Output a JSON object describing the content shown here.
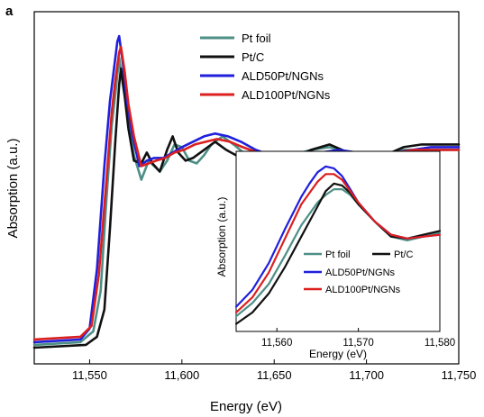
{
  "figure": {
    "panel_label": "a"
  },
  "chart_data": [
    {
      "type": "line",
      "xlabel": "Energy (eV)",
      "ylabel": "Absorption (a.u.)",
      "xlim": [
        11520,
        11750
      ],
      "ylim": [
        -0.05,
        1.25
      ],
      "xticks": [
        11550,
        11600,
        11650,
        11700,
        11750
      ],
      "xtick_labels": [
        "11,550",
        "11,600",
        "11,650",
        "11,700",
        "11,750"
      ],
      "yticks_shown": false,
      "legend_position": "top-center",
      "series": [
        {
          "name": "Pt foil",
          "color": "#4e8f86",
          "x": [
            11520,
            11545,
            11552,
            11556,
            11559,
            11562,
            11564,
            11566,
            11568,
            11571,
            11574,
            11578,
            11582,
            11585,
            11588,
            11592,
            11596,
            11600,
            11604,
            11608,
            11612,
            11616,
            11622,
            11628,
            11635,
            11642,
            11650,
            11660,
            11670,
            11680,
            11690,
            11700,
            11710,
            11720,
            11730,
            11740,
            11750
          ],
          "y": [
            0.02,
            0.03,
            0.07,
            0.22,
            0.55,
            0.83,
            0.95,
            1.08,
            0.98,
            0.86,
            0.72,
            0.63,
            0.7,
            0.68,
            0.66,
            0.7,
            0.76,
            0.75,
            0.7,
            0.69,
            0.72,
            0.76,
            0.79,
            0.76,
            0.72,
            0.7,
            0.69,
            0.72,
            0.74,
            0.75,
            0.73,
            0.71,
            0.72,
            0.74,
            0.74,
            0.74,
            0.74
          ]
        },
        {
          "name": "Pt/C",
          "color": "#111111",
          "x": [
            11520,
            11548,
            11554,
            11558,
            11561,
            11564,
            11566,
            11567,
            11569,
            11571,
            11574,
            11578,
            11581,
            11584,
            11588,
            11592,
            11595,
            11598,
            11602,
            11606,
            11612,
            11618,
            11624,
            11632,
            11640,
            11650,
            11660,
            11670,
            11680,
            11690,
            11700,
            11710,
            11720,
            11730,
            11740,
            11750
          ],
          "y": [
            0.01,
            0.02,
            0.05,
            0.15,
            0.45,
            0.78,
            0.98,
            1.04,
            0.94,
            0.82,
            0.7,
            0.69,
            0.73,
            0.69,
            0.66,
            0.74,
            0.79,
            0.73,
            0.7,
            0.71,
            0.74,
            0.77,
            0.74,
            0.71,
            0.69,
            0.68,
            0.71,
            0.74,
            0.76,
            0.73,
            0.7,
            0.72,
            0.75,
            0.76,
            0.76,
            0.76
          ]
        },
        {
          "name": "ALD50Pt/NGNs",
          "color": "#1f1fdc",
          "x": [
            11520,
            11545,
            11550,
            11554,
            11558,
            11561,
            11563,
            11565,
            11566,
            11568,
            11570,
            11573,
            11577,
            11581,
            11585,
            11590,
            11595,
            11600,
            11606,
            11612,
            11618,
            11625,
            11632,
            11640,
            11648,
            11656,
            11665,
            11675,
            11685,
            11695,
            11705,
            11715,
            11725,
            11735,
            11745,
            11750
          ],
          "y": [
            0.03,
            0.04,
            0.08,
            0.3,
            0.68,
            0.92,
            1.03,
            1.14,
            1.16,
            1.06,
            0.93,
            0.8,
            0.68,
            0.7,
            0.71,
            0.71,
            0.73,
            0.75,
            0.77,
            0.79,
            0.8,
            0.79,
            0.77,
            0.74,
            0.72,
            0.71,
            0.72,
            0.73,
            0.74,
            0.73,
            0.72,
            0.73,
            0.74,
            0.75,
            0.75,
            0.75
          ]
        },
        {
          "name": "ALD100Pt/NGNs",
          "color": "#dc1f1f",
          "x": [
            11520,
            11545,
            11551,
            11555,
            11559,
            11562,
            11564,
            11566,
            11567,
            11569,
            11571,
            11574,
            11578,
            11582,
            11586,
            11591,
            11596,
            11601,
            11607,
            11613,
            11619,
            11626,
            11633,
            11641,
            11649,
            11657,
            11666,
            11676,
            11686,
            11696,
            11706,
            11716,
            11726,
            11736,
            11746,
            11750
          ],
          "y": [
            0.04,
            0.05,
            0.09,
            0.28,
            0.62,
            0.88,
            1.0,
            1.1,
            1.12,
            1.03,
            0.91,
            0.79,
            0.68,
            0.69,
            0.7,
            0.71,
            0.73,
            0.74,
            0.76,
            0.77,
            0.78,
            0.77,
            0.75,
            0.73,
            0.71,
            0.71,
            0.72,
            0.73,
            0.73,
            0.73,
            0.72,
            0.73,
            0.74,
            0.74,
            0.74,
            0.74
          ]
        }
      ]
    },
    {
      "type": "line",
      "role": "inset",
      "xlabel": "Energy (eV)",
      "ylabel": "Absorption (a.u.)",
      "xlim": [
        11555,
        11580
      ],
      "ylim": [
        0.3,
        1.25
      ],
      "xticks": [
        11560,
        11570,
        11580
      ],
      "xtick_labels": [
        "11,560",
        "11,570",
        "11,580"
      ],
      "yticks_shown": false,
      "legend_position": "bottom-center",
      "series": [
        {
          "name": "Pt foil",
          "color": "#4e8f86",
          "x": [
            11555,
            11557,
            11559,
            11561,
            11563,
            11565,
            11566,
            11567,
            11568,
            11569,
            11570,
            11572,
            11574,
            11576,
            11578,
            11580
          ],
          "y": [
            0.38,
            0.45,
            0.55,
            0.7,
            0.86,
            0.98,
            1.02,
            1.05,
            1.05,
            1.02,
            0.97,
            0.88,
            0.8,
            0.78,
            0.8,
            0.82
          ]
        },
        {
          "name": "Pt/C",
          "color": "#111111",
          "x": [
            11555,
            11557,
            11559,
            11561,
            11563,
            11565,
            11566,
            11567,
            11568,
            11569,
            11570,
            11572,
            11574,
            11576,
            11578,
            11580
          ],
          "y": [
            0.34,
            0.4,
            0.5,
            0.64,
            0.8,
            0.96,
            1.04,
            1.08,
            1.07,
            1.03,
            0.97,
            0.88,
            0.8,
            0.79,
            0.81,
            0.83
          ]
        },
        {
          "name": "ALD50Pt/NGNs",
          "color": "#1f1fdc",
          "x": [
            11555,
            11557,
            11559,
            11561,
            11563,
            11564,
            11565,
            11566,
            11567,
            11568,
            11569,
            11570,
            11572,
            11574,
            11576,
            11578,
            11580
          ],
          "y": [
            0.43,
            0.52,
            0.66,
            0.84,
            1.01,
            1.08,
            1.14,
            1.17,
            1.16,
            1.12,
            1.05,
            0.98,
            0.88,
            0.81,
            0.79,
            0.8,
            0.81
          ]
        },
        {
          "name": "ALD100Pt/NGNs",
          "color": "#dc1f1f",
          "x": [
            11555,
            11557,
            11559,
            11561,
            11563,
            11565,
            11566,
            11567,
            11568,
            11569,
            11570,
            11572,
            11574,
            11576,
            11578,
            11580
          ],
          "y": [
            0.4,
            0.48,
            0.61,
            0.79,
            0.97,
            1.09,
            1.13,
            1.13,
            1.1,
            1.04,
            0.98,
            0.88,
            0.81,
            0.79,
            0.8,
            0.81
          ]
        }
      ]
    }
  ]
}
